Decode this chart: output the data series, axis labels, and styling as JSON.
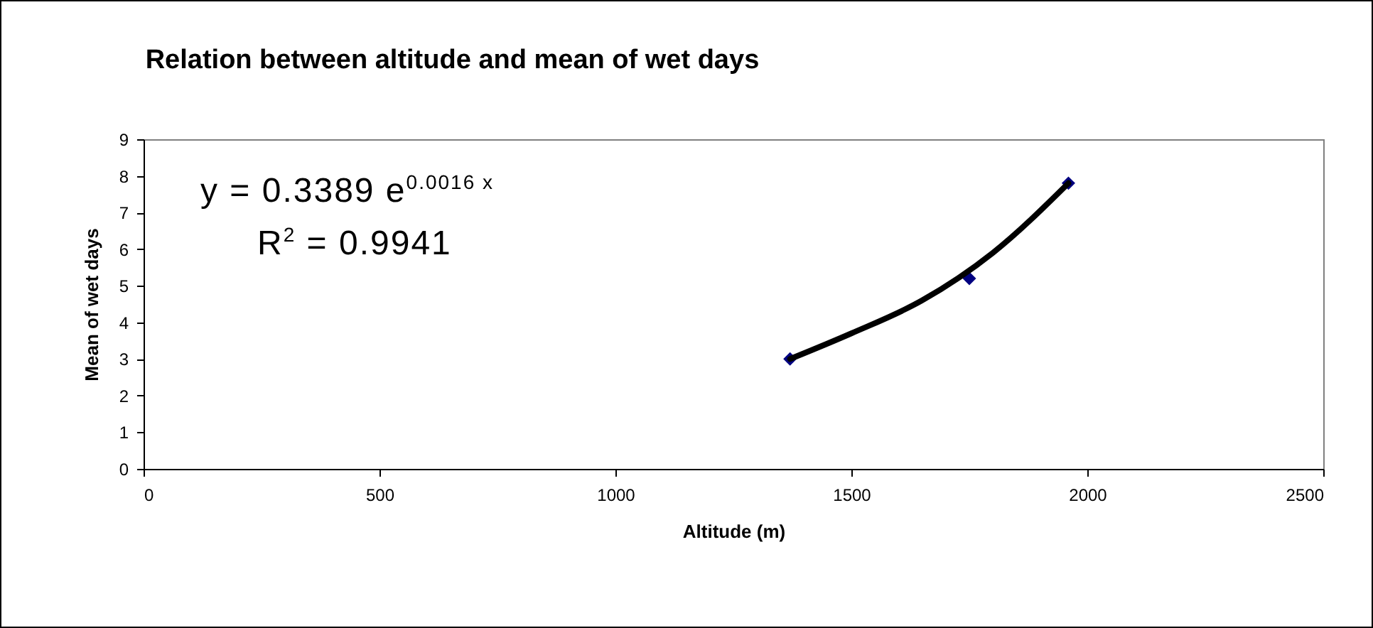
{
  "chart_data": {
    "type": "scatter",
    "title": "Relation between altitude and mean of wet days",
    "xlabel": "Altitude    (m)",
    "ylabel": "Mean of wet days",
    "xlim": [
      0,
      2500
    ],
    "xticks": [
      0,
      500,
      1000,
      1500,
      2000,
      2500
    ],
    "ylim": [
      0,
      9
    ],
    "yticks": [
      0,
      1,
      2,
      3,
      4,
      5,
      6,
      7,
      8,
      9
    ],
    "series": [
      {
        "type": "scatter",
        "color": "#000080",
        "x": [
          1370,
          1750,
          1960
        ],
        "values": [
          3.0,
          5.2,
          7.8
        ]
      },
      {
        "type": "line",
        "marker": "none",
        "color": "#000000",
        "x": [
          1370,
          1500,
          1650,
          1800,
          1960
        ],
        "values": [
          3.0,
          3.7,
          4.6,
          5.9,
          7.8
        ]
      }
    ],
    "annotations": [
      "y = 0.3389 e$^{0.0016 x}$",
      "R$^{2}$ = 0.9941"
    ],
    "marker": "diamond",
    "grid": false
  }
}
